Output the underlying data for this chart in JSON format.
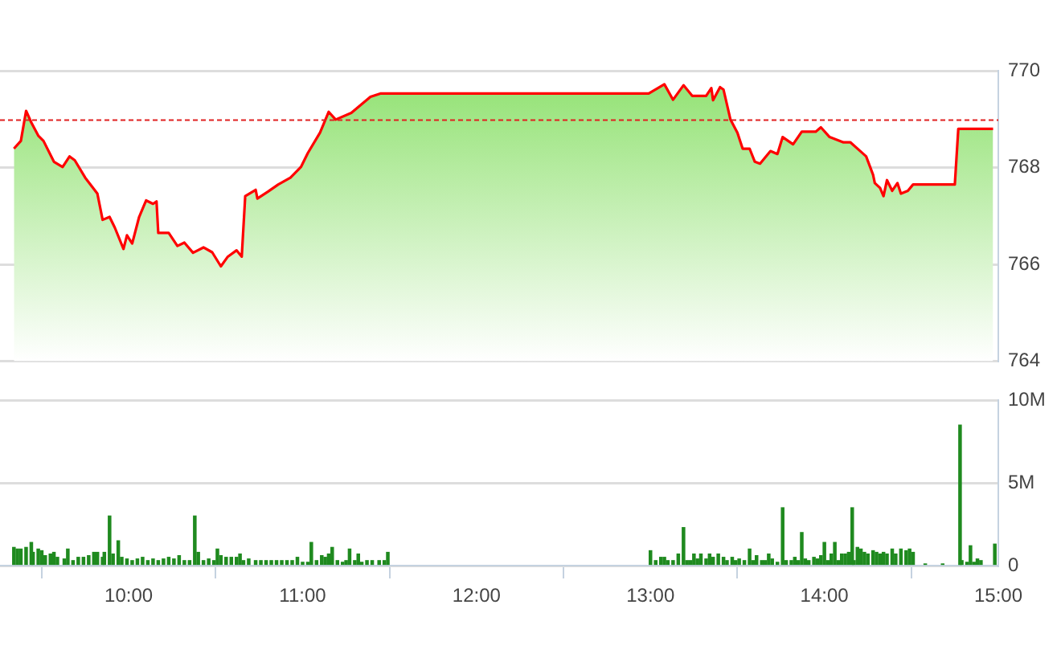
{
  "chart_data": [
    {
      "type": "area",
      "x": [
        9.34,
        9.38,
        9.41,
        9.44,
        9.48,
        9.51,
        9.57,
        9.62,
        9.66,
        9.69,
        9.75,
        9.82,
        9.85,
        9.89,
        9.92,
        9.97,
        9.99,
        10.02,
        10.06,
        10.1,
        10.14,
        10.16,
        10.17,
        10.23,
        10.28,
        10.32,
        10.37,
        10.43,
        10.48,
        10.53,
        10.57,
        10.62,
        10.65,
        10.67,
        10.73,
        10.74,
        10.8,
        10.86,
        10.93,
        10.99,
        11.03,
        11.1,
        11.15,
        11.19,
        11.28,
        11.39,
        11.45,
        11.5,
        12.99,
        13.08,
        13.13,
        13.19,
        13.24,
        13.32,
        13.35,
        13.36,
        13.4,
        13.42,
        13.46,
        13.5,
        13.53,
        13.57,
        13.6,
        13.63,
        13.69,
        13.73,
        13.76,
        13.82,
        13.87,
        13.95,
        13.98,
        14.03,
        14.11,
        14.15,
        14.2,
        14.24,
        14.28,
        14.29,
        14.32,
        14.34,
        14.36,
        14.39,
        14.42,
        14.44,
        14.48,
        14.51,
        14.75,
        14.77,
        14.97
      ],
      "series": [
        {
          "color": "#ff0000",
          "values": [
            768.39,
            768.55,
            769.17,
            768.93,
            768.66,
            768.55,
            768.12,
            768.01,
            768.23,
            768.15,
            767.79,
            767.46,
            766.92,
            766.98,
            766.76,
            766.32,
            766.6,
            766.43,
            766.98,
            767.32,
            767.25,
            767.3,
            766.65,
            766.65,
            766.38,
            766.45,
            766.24,
            766.35,
            766.25,
            765.96,
            766.16,
            766.29,
            766.16,
            767.41,
            767.54,
            767.36,
            767.5,
            767.65,
            767.79,
            768.01,
            768.3,
            768.72,
            769.15,
            768.99,
            769.13,
            769.46,
            769.53,
            769.53,
            769.53,
            769.72,
            769.4,
            769.7,
            769.48,
            769.48,
            769.64,
            769.39,
            769.66,
            769.61,
            768.99,
            768.72,
            768.39,
            768.39,
            768.12,
            768.08,
            768.34,
            768.28,
            768.63,
            768.48,
            768.74,
            768.74,
            768.83,
            768.63,
            768.52,
            768.52,
            768.36,
            768.23,
            767.85,
            767.68,
            767.58,
            767.41,
            767.74,
            767.52,
            767.68,
            767.46,
            767.52,
            767.65,
            767.65,
            768.8,
            768.8
          ]
        }
      ],
      "xlim": [
        9.26,
        15
      ],
      "ylim": [
        764,
        770
      ],
      "yticks": [
        764,
        766,
        768,
        770
      ],
      "grid": "y",
      "tick_labels": "y",
      "ref_lines": [
        {
          "axis": "y",
          "value": 768.98,
          "color": "#e02020",
          "line_style": "dashed"
        }
      ]
    },
    {
      "type": "bar",
      "x": [
        9.34,
        9.36,
        9.38,
        9.41,
        9.44,
        9.45,
        9.48,
        9.5,
        9.52,
        9.55,
        9.57,
        9.59,
        9.63,
        9.65,
        9.68,
        9.71,
        9.74,
        9.77,
        9.8,
        9.82,
        9.85,
        9.86,
        9.89,
        9.91,
        9.94,
        9.96,
        9.99,
        10.02,
        10.05,
        10.08,
        10.11,
        10.14,
        10.17,
        10.2,
        10.23,
        10.26,
        10.29,
        10.32,
        10.35,
        10.38,
        10.4,
        10.43,
        10.46,
        10.49,
        10.51,
        10.53,
        10.56,
        10.59,
        10.62,
        10.64,
        10.66,
        10.69,
        10.73,
        10.76,
        10.79,
        10.82,
        10.85,
        10.88,
        10.91,
        10.94,
        10.97,
        11,
        11.03,
        11.05,
        11.08,
        11.11,
        11.13,
        11.15,
        11.17,
        11.2,
        11.23,
        11.25,
        11.27,
        11.3,
        11.32,
        11.34,
        11.37,
        11.4,
        11.44,
        11.47,
        11.49,
        13,
        13.03,
        13.06,
        13.08,
        13.1,
        13.13,
        13.16,
        13.19,
        13.21,
        13.23,
        13.25,
        13.27,
        13.29,
        13.32,
        13.34,
        13.36,
        13.39,
        13.42,
        13.44,
        13.47,
        13.49,
        13.51,
        13.54,
        13.57,
        13.59,
        13.61,
        13.64,
        13.66,
        13.68,
        13.7,
        13.73,
        13.76,
        13.78,
        13.81,
        13.83,
        13.85,
        13.87,
        13.89,
        13.91,
        13.94,
        13.96,
        13.98,
        14,
        14.02,
        14.04,
        14.06,
        14.08,
        14.1,
        14.12,
        14.14,
        14.16,
        14.17,
        14.19,
        14.21,
        14.23,
        14.25,
        14.28,
        14.3,
        14.32,
        14.34,
        14.36,
        14.39,
        14.41,
        14.44,
        14.47,
        14.49,
        14.51,
        14.58,
        14.68,
        14.78,
        14.79,
        14.82,
        14.84,
        14.86,
        14.88,
        14.9,
        14.98
      ],
      "values": [
        1.1,
        1,
        1,
        1.1,
        1.4,
        0.8,
        1,
        0.9,
        0.6,
        0.7,
        0.8,
        0.5,
        0.4,
        1,
        0.3,
        0.5,
        0.5,
        0.6,
        0.8,
        0.8,
        0.5,
        0.8,
        3,
        0.7,
        1.5,
        0.5,
        0.4,
        0.3,
        0.4,
        0.5,
        0.3,
        0.4,
        0.3,
        0.4,
        0.5,
        0.4,
        0.6,
        0.3,
        0.3,
        3,
        0.8,
        0.3,
        0.4,
        0.3,
        1,
        0.6,
        0.5,
        0.5,
        0.5,
        0.7,
        0.3,
        0.4,
        0.3,
        0.3,
        0.3,
        0.3,
        0.3,
        0.3,
        0.3,
        0.3,
        0.5,
        0.2,
        0.2,
        1.4,
        0.3,
        0.6,
        0.5,
        0.7,
        1.1,
        0.3,
        0.2,
        0.3,
        1,
        0.3,
        0.7,
        0.2,
        0.3,
        0.3,
        0.3,
        0.3,
        0.8,
        0.9,
        0.3,
        0.5,
        0.5,
        0.3,
        0.3,
        0.7,
        2.3,
        0.3,
        0.3,
        0.7,
        0.4,
        0.7,
        0.4,
        0.7,
        0.5,
        0.7,
        0.5,
        0.3,
        0.5,
        0.3,
        0.4,
        0.3,
        1,
        0.3,
        0.6,
        0.3,
        0.3,
        0.7,
        0.4,
        0.2,
        3.5,
        0.3,
        0.3,
        0.5,
        0.3,
        2,
        0.4,
        0.3,
        0.5,
        0.4,
        0.6,
        1.4,
        0.3,
        0.7,
        1.4,
        0.3,
        0.7,
        0.7,
        0.8,
        3.5,
        0.3,
        1.1,
        1,
        0.8,
        0.7,
        0.9,
        0.8,
        0.7,
        0.8,
        0.7,
        1,
        0.7,
        1,
        0.9,
        1,
        0.8,
        0.1,
        0.1,
        8.5,
        0.3,
        0.2,
        1.2,
        0.2,
        0.4,
        0.3,
        1.3
      ],
      "color": "#1f8a1f",
      "xlim": [
        9.26,
        15
      ],
      "xticks": [
        {
          "value": 10,
          "label": "10:00"
        },
        {
          "value": 11,
          "label": "11:00"
        },
        {
          "value": 12,
          "label": "12:00"
        },
        {
          "value": 13,
          "label": "13:00"
        },
        {
          "value": 14,
          "label": "14:00"
        },
        {
          "value": 15,
          "label": "15:00"
        }
      ],
      "ylim": [
        0,
        10
      ],
      "yticks": [
        0,
        {
          "value": 5,
          "label": "5M"
        },
        {
          "value": 10,
          "label": "10M"
        }
      ],
      "grid": "y"
    }
  ]
}
